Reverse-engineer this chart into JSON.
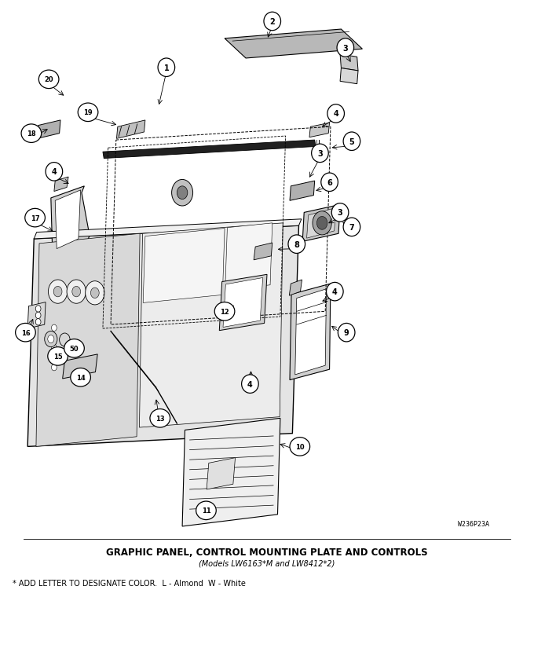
{
  "title_line1": "GRAPHIC PANEL, CONTROL MOUNTING PLATE AND CONTROLS",
  "title_line2": "(Models LW6163*M and LW8412*2)",
  "footnote": "* ADD LETTER TO DESIGNATE COLOR.  L - Almond  W - White",
  "watermark": "W236P23A",
  "bg_color": "#ffffff",
  "fig_width": 6.8,
  "fig_height": 8.45,
  "dpi": 100,
  "title_fontsize": 8.5,
  "subtitle_fontsize": 7.0,
  "footnote_fontsize": 7.0
}
